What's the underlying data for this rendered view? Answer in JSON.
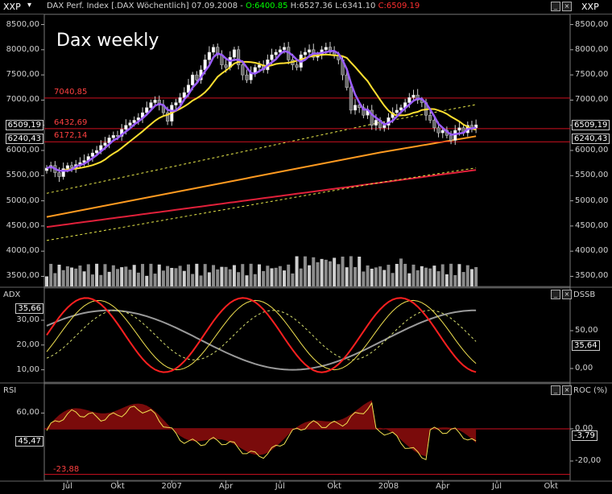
{
  "header": {
    "symbol": "XXP",
    "title_prefix": "DAX Perf. Index [.DAX  Wöchentlich] 07.09.2008 - ",
    "open": "O:6400.85",
    "high": "H:6527.36",
    "low": "L:6341.10",
    "close": "C:6509.19",
    "right_symbol": "XXP"
  },
  "colors": {
    "open": "#00ff00",
    "close": "#ff3030",
    "ma_fast": "#9a5cff",
    "ma_mid": "#ffe030",
    "ma_slow": "#ff9a20",
    "ma_long": "#e0203a",
    "band": "#e8e84a",
    "hline": "#d01020"
  },
  "annotation": "Dax weekly",
  "chart_data": [
    {
      "type": "candlestick",
      "title": "Dax weekly",
      "ylim": [
        3300,
        8700
      ],
      "yticks": [
        "8500,00",
        "8000,00",
        "7500,00",
        "7000,00",
        "6500,00",
        "6000,00",
        "5500,00",
        "5000,00",
        "4500,00",
        "4000,00",
        "3500,00"
      ],
      "ytick_values": [
        8500,
        8000,
        7500,
        7000,
        6500,
        6000,
        5500,
        5000,
        4500,
        4000,
        3500
      ],
      "xticks": [
        "Jul",
        "Okt",
        "2007",
        "Apr",
        "Jul",
        "Okt",
        "2008",
        "Apr",
        "Jul",
        "Okt"
      ],
      "xtick_index": [
        5,
        17,
        30,
        43,
        56,
        69,
        82,
        95,
        108,
        121
      ],
      "hlines": [
        {
          "value": 7040.85,
          "label": "7040,85"
        },
        {
          "value": 6432.69,
          "label": "6432,69"
        },
        {
          "value": 6172.14,
          "label": "6172,14"
        }
      ],
      "last_values": {
        "left_close": "6509,19",
        "left_ma": "6240,43",
        "right_close": "6509,19",
        "right_ma": "6240,43"
      },
      "close": [
        5650,
        5700,
        5560,
        5480,
        5640,
        5700,
        5660,
        5720,
        5760,
        5800,
        5880,
        5950,
        6000,
        6100,
        6150,
        6250,
        6300,
        6280,
        6420,
        6500,
        6550,
        6600,
        6650,
        6750,
        6850,
        6950,
        7000,
        6900,
        6750,
        6580,
        6900,
        6950,
        7050,
        7150,
        7300,
        7500,
        7400,
        7600,
        7800,
        7950,
        8050,
        7900,
        7700,
        7650,
        7850,
        8000,
        7700,
        7500,
        7400,
        7550,
        7650,
        7700,
        7600,
        7800,
        7900,
        7950,
        8000,
        8050,
        7800,
        7700,
        7650,
        7900,
        7950,
        8000,
        7850,
        7900,
        8000,
        8050,
        7950,
        7900,
        7800,
        7500,
        7250,
        6800,
        6900,
        6850,
        6700,
        6800,
        6500,
        6600,
        6450,
        6500,
        6650,
        6750,
        6800,
        6850,
        6950,
        7050,
        7100,
        7000,
        6950,
        6700,
        6600,
        6450,
        6350,
        6400,
        6300,
        6200,
        6400,
        6450,
        6350,
        6500,
        6450,
        6509
      ],
      "volume_range": [
        3350,
        3850
      ]
    },
    {
      "type": "line",
      "title": "ADX",
      "ylim": [
        5,
        43
      ],
      "yticks": [
        "30,00",
        "20,00",
        "10,00"
      ],
      "ytick_values": [
        30,
        20,
        10
      ],
      "right_title": "DSSB",
      "right_yticks": [
        "50,00",
        "0,00"
      ],
      "last_values": {
        "left": "35,66",
        "right": "35,64"
      }
    },
    {
      "type": "line",
      "title": "RSI",
      "ylim": [
        -32,
        100
      ],
      "yticks": [
        "60,00"
      ],
      "ytick_values": [
        60
      ],
      "hlines": [
        {
          "value": -23.88,
          "label": "-23,88"
        }
      ],
      "right_title": "ROC (%)",
      "right_yticks": [
        "0,00",
        "-20,00"
      ],
      "last_values": {
        "left": "45,47",
        "right": "-3,79"
      }
    }
  ]
}
